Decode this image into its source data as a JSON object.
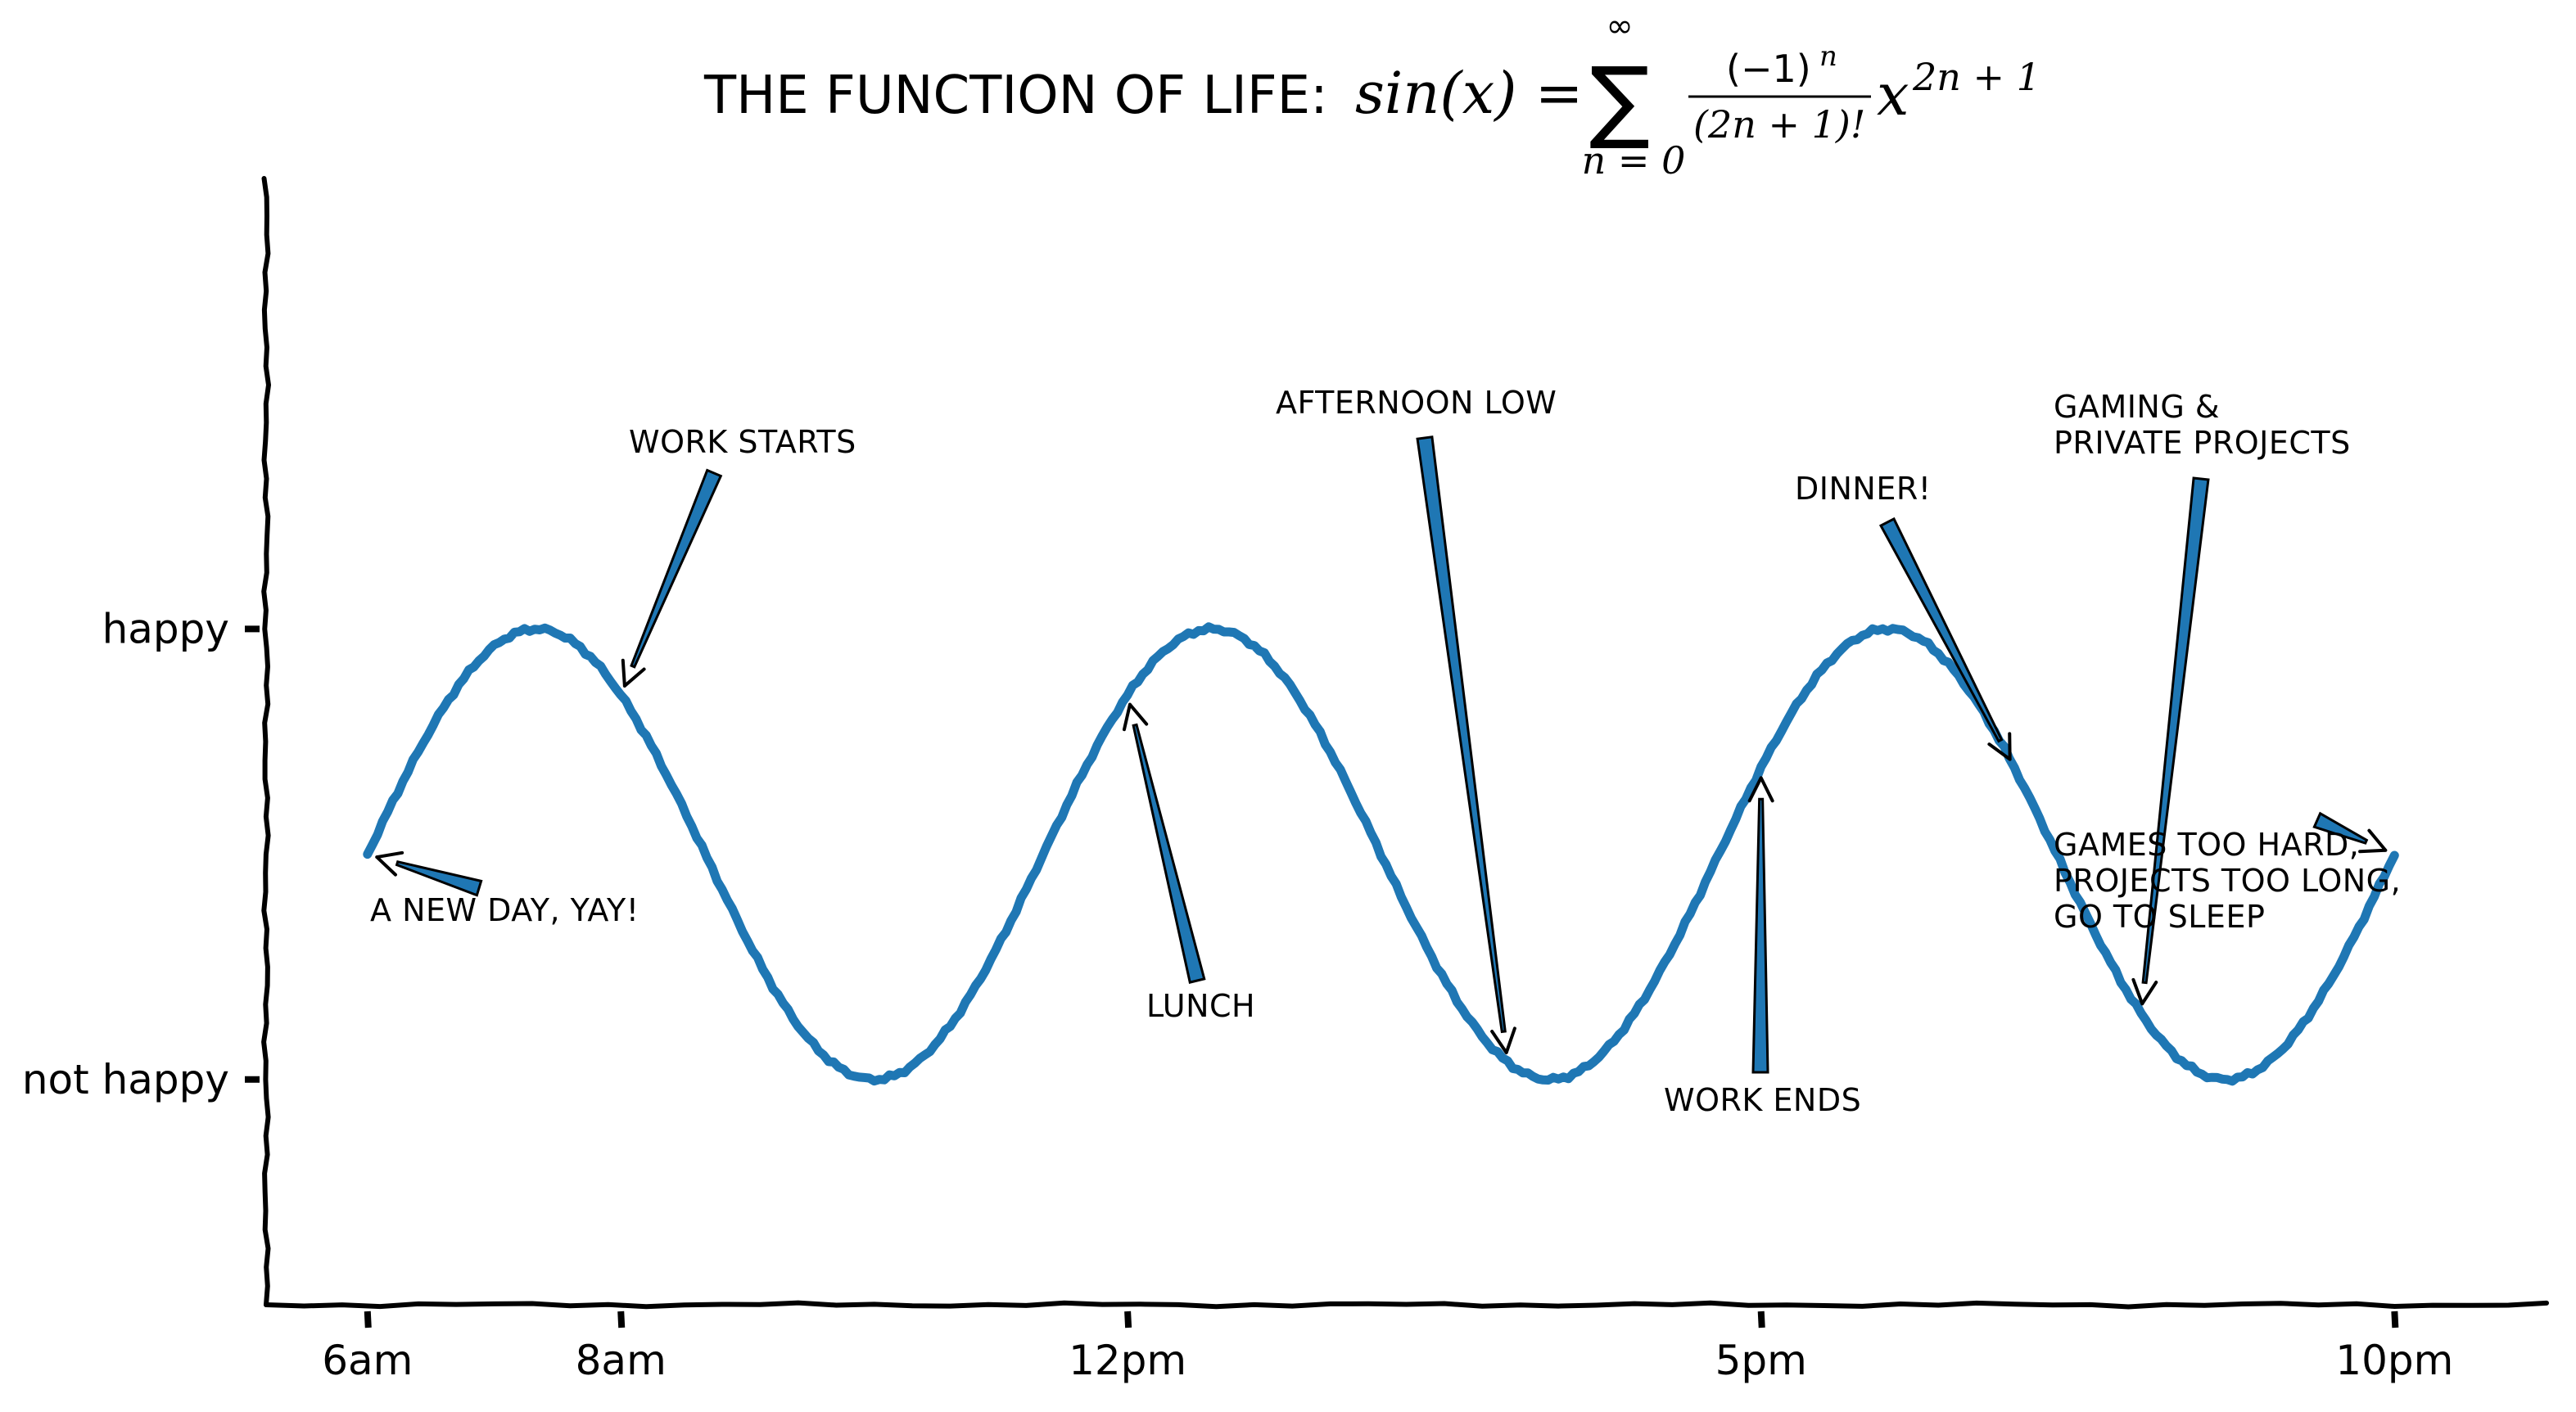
{
  "chart_data": {
    "type": "line",
    "title": {
      "prefix": "THE FUNCTION OF LIFE:",
      "lhs": "sin(x) =",
      "sum_top": "∞",
      "sum_symbol": "∑",
      "sum_bottom": "n = 0",
      "frac_num": "(−1)",
      "frac_num_exp": "n",
      "frac_den": "(2n + 1)!",
      "x": "x",
      "x_exp": "2n + 1"
    },
    "x_tick_labels": [
      "6am",
      "8am",
      "12pm",
      "5pm",
      "10pm"
    ],
    "x_tick_hours": [
      6,
      8,
      12,
      17,
      22
    ],
    "xlim": [
      5.2,
      23.2
    ],
    "y_tick_labels": [
      "happy",
      "not happy"
    ],
    "y_tick_values": [
      1,
      -1
    ],
    "ylim": [
      -2,
      3
    ],
    "series": [
      {
        "color": "#1f77b4",
        "function": "sin",
        "x_start_hour": 6,
        "x_end_hour": 22,
        "phase_start": 0,
        "phase_end": 18.849556
      }
    ],
    "annotations": [
      {
        "lines": [
          "A NEW DAY, YAY!"
        ],
        "hour": 6.0
      },
      {
        "lines": [
          "WORK STARTS"
        ],
        "hour": 8.0
      },
      {
        "lines": [
          "LUNCH"
        ],
        "hour": 12.0
      },
      {
        "lines": [
          "AFTERNOON LOW"
        ],
        "hour": 15.0
      },
      {
        "lines": [
          "WORK ENDS"
        ],
        "hour": 17.0
      },
      {
        "lines": [
          "DINNER!"
        ],
        "hour": 19.0
      },
      {
        "lines": [
          "GAMING &",
          "PRIVATE PROJECTS"
        ],
        "hour": 20.0
      },
      {
        "lines": [
          "GAMES TOO HARD,",
          "PROJECTS TOO LONG,",
          "GO TO SLEEP"
        ],
        "hour": 22.0
      }
    ],
    "grid": false,
    "style": "xkcd"
  }
}
